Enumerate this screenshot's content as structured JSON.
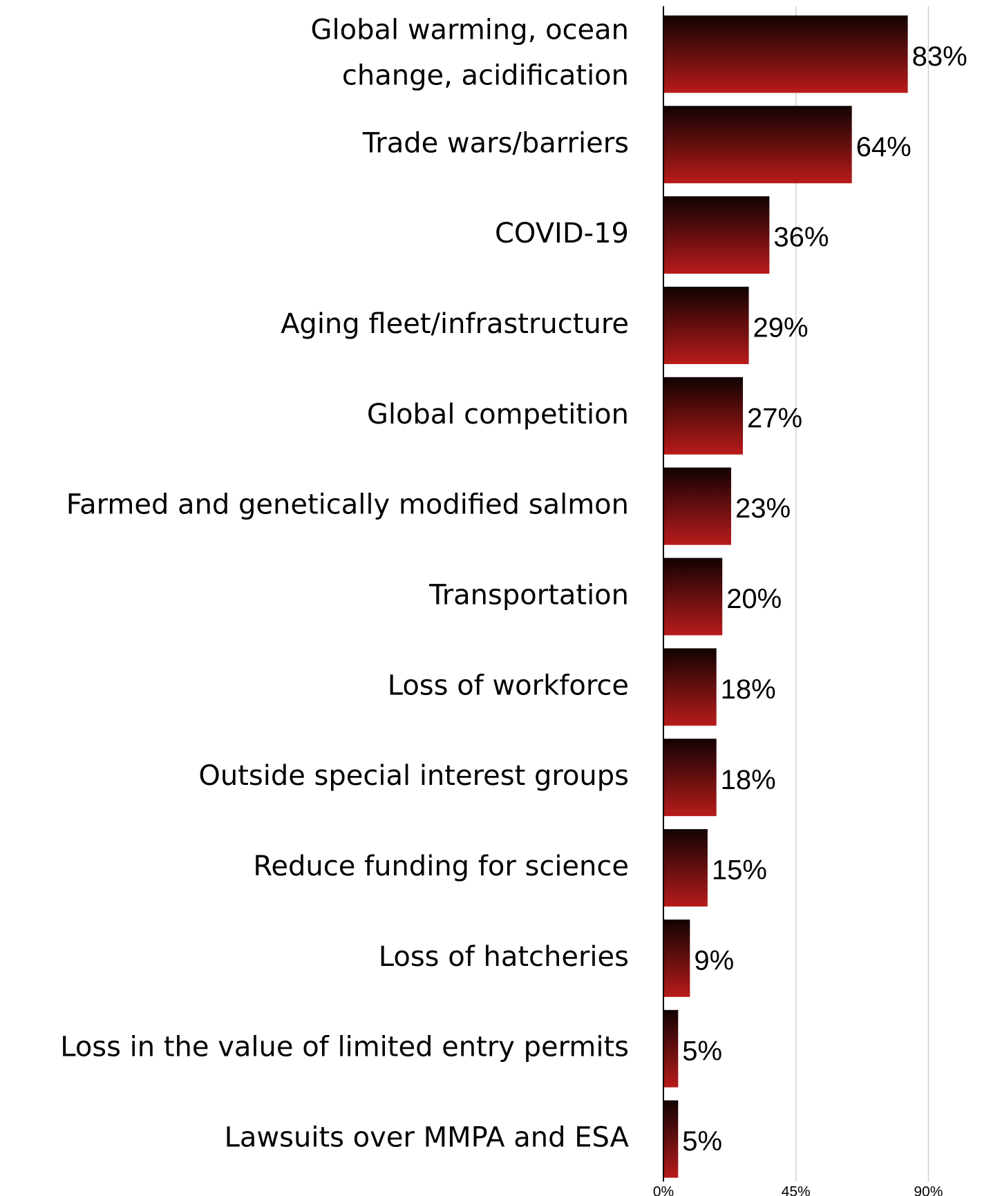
{
  "chart_data": {
    "type": "barh",
    "categories": [
      "Global warming, ocean\nchange, acidification",
      "Trade wars/barriers",
      "COVID-19",
      "Aging fleet/infrastructure",
      "Global competition",
      "Farmed and genetically modified salmon",
      "Transportation",
      "Loss of workforce",
      "Outside special interest groups",
      "Reduce funding for science",
      "Loss of hatcheries",
      "Loss in the value of limited entry permits",
      "Lawsuits over MMPA and ESA"
    ],
    "values": [
      83,
      64,
      36,
      29,
      27,
      23,
      20,
      18,
      18,
      15,
      9,
      5,
      5
    ],
    "value_labels": [
      "83%",
      "64%",
      "36%",
      "29%",
      "27%",
      "23%",
      "20%",
      "18%",
      "18%",
      "15%",
      "9%",
      "5%",
      "5%"
    ],
    "color": [
      "#120202",
      "#b81b1b"
    ],
    "xlim": [
      0,
      100
    ],
    "xticks": [
      {
        "value": 0,
        "label": "0%"
      },
      {
        "value": 45,
        "label": "45%"
      },
      {
        "value": 90,
        "label": "90%"
      }
    ],
    "grid": true
  }
}
